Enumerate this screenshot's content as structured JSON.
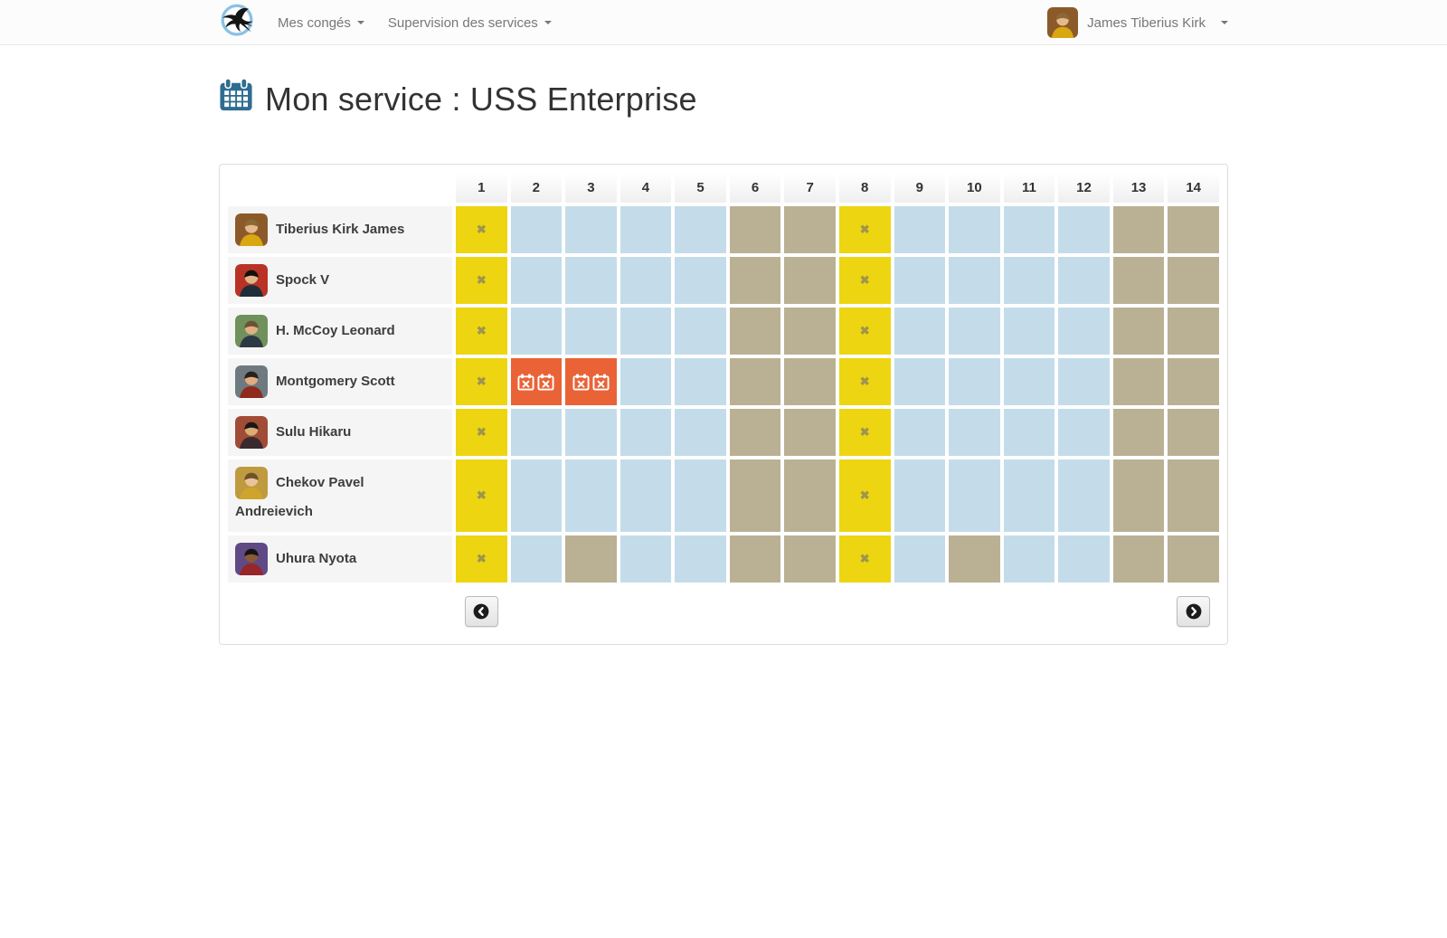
{
  "navbar": {
    "brand_icon": "swallow-logo",
    "menus": [
      {
        "label": "Mes congés"
      },
      {
        "label": "Supervision des services"
      }
    ],
    "user": {
      "name": "James Tiberius Kirk"
    }
  },
  "page": {
    "title": "Mon service : USS Enterprise",
    "title_icon": "calendar-icon",
    "title_icon_color": "#2e6d91"
  },
  "calendar": {
    "day_headers": [
      "1",
      "2",
      "3",
      "4",
      "5",
      "6",
      "7",
      "8",
      "9",
      "10",
      "11",
      "12",
      "13",
      "14"
    ],
    "state_colors": {
      "work": "#c4dcea",
      "weekend": "#bab194",
      "holiday": "#eed511",
      "leave": "#e96337"
    },
    "holiday_mark": "✖",
    "members": [
      {
        "name": "Tiberius Kirk James",
        "avatar": {
          "bg": "#8c5a2a",
          "skin": "#e6b98c",
          "shirt": "#d9a810",
          "hair": "#8a6a33"
        },
        "states": [
          "holiday",
          "work",
          "work",
          "work",
          "work",
          "weekend",
          "weekend",
          "holiday",
          "work",
          "work",
          "work",
          "work",
          "weekend",
          "weekend"
        ]
      },
      {
        "name": "Spock V",
        "avatar": {
          "bg": "#b83325",
          "skin": "#e2b589",
          "shirt": "#1f2d3a",
          "hair": "#14100c"
        },
        "states": [
          "holiday",
          "work",
          "work",
          "work",
          "work",
          "weekend",
          "weekend",
          "holiday",
          "work",
          "work",
          "work",
          "work",
          "weekend",
          "weekend"
        ]
      },
      {
        "name": "H. McCoy Leonard",
        "avatar": {
          "bg": "#70905c",
          "skin": "#e2af85",
          "shirt": "#2c3a44",
          "hair": "#6b5234"
        },
        "states": [
          "holiday",
          "work",
          "work",
          "work",
          "work",
          "weekend",
          "weekend",
          "holiday",
          "work",
          "work",
          "work",
          "work",
          "weekend",
          "weekend"
        ]
      },
      {
        "name": "Montgomery Scott",
        "avatar": {
          "bg": "#6f7a80",
          "skin": "#e0ac80",
          "shirt": "#8e2a1e",
          "hair": "#2a211c"
        },
        "states": [
          "holiday",
          "leave",
          "leave",
          "work",
          "work",
          "weekend",
          "weekend",
          "holiday",
          "work",
          "work",
          "work",
          "work",
          "weekend",
          "weekend"
        ]
      },
      {
        "name": "Sulu Hikaru",
        "avatar": {
          "bg": "#a04c36",
          "skin": "#dcab76",
          "shirt": "#3a2a2e",
          "hair": "#1c1713"
        },
        "states": [
          "holiday",
          "work",
          "work",
          "work",
          "work",
          "weekend",
          "weekend",
          "holiday",
          "work",
          "work",
          "work",
          "work",
          "weekend",
          "weekend"
        ]
      },
      {
        "name": "Chekov Pavel Andreievich",
        "avatar": {
          "bg": "#c09a3e",
          "skin": "#e8c49a",
          "shirt": "#cfa42c",
          "hair": "#6e5228"
        },
        "states": [
          "holiday",
          "work",
          "work",
          "work",
          "work",
          "weekend",
          "weekend",
          "holiday",
          "work",
          "work",
          "work",
          "work",
          "weekend",
          "weekend"
        ]
      },
      {
        "name": "Uhura Nyota",
        "avatar": {
          "bg": "#5f4a86",
          "skin": "#8a5a38",
          "shirt": "#97262a",
          "hair": "#171214"
        },
        "states": [
          "holiday",
          "work",
          "weekend",
          "work",
          "work",
          "weekend",
          "weekend",
          "holiday",
          "work",
          "weekend",
          "work",
          "work",
          "weekend",
          "weekend"
        ]
      }
    ]
  },
  "pagination": {
    "prev_icon": "chevron-left-circle-icon",
    "next_icon": "chevron-right-circle-icon"
  }
}
